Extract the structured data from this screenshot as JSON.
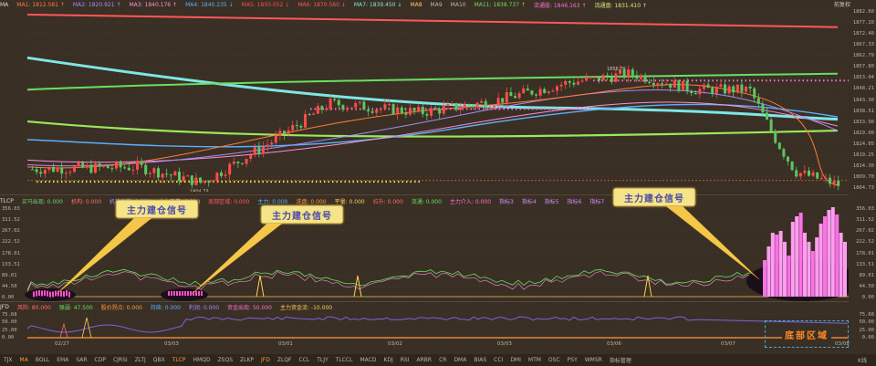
{
  "top_bar": {
    "ma_items": [
      {
        "label": "MA",
        "color": "#e0d8ca"
      },
      {
        "label": "MA1: 1812.581 ↑",
        "color": "#ff7a3c"
      },
      {
        "label": "MA2: 1820.921 ↑",
        "color": "#a48cff"
      },
      {
        "label": "MA3: 1840.176 ↑",
        "color": "#ff8fd6"
      },
      {
        "label": "MA4: 1840.235 ↓",
        "color": "#5ab0ff"
      },
      {
        "label": "MA5: 1850.052 ↓",
        "color": "#ff4c4c"
      },
      {
        "label": "MA6: 1870.560 ↓",
        "color": "#ff5858"
      },
      {
        "label": "MA7: 1839.450 ↓",
        "color": "#7ee6e6"
      },
      {
        "label": "MA8",
        "color": "#ffce5a"
      },
      {
        "label": "MA9",
        "color": "#c8b6a0"
      },
      {
        "label": "MA10",
        "color": "#c8b6a0"
      },
      {
        "label": "MA11: 1838.737 ↑",
        "color": "#66e060"
      },
      {
        "label": "流通股: 1846.163 ↑",
        "color": "#ff6fd1"
      },
      {
        "label": "流通盘: 1831.410 ↑",
        "color": "#d6f074"
      }
    ],
    "right_label": "前复权"
  },
  "price_axis": [
    "1882.60",
    "1877.20",
    "1872.40",
    "1867.33",
    "1862.79",
    "1857.80",
    "1853.04",
    "1848.21",
    "1843.30",
    "1838.51",
    "1833.90",
    "1829.00",
    "1824.05",
    "1819.25",
    "1814.30",
    "1809.70",
    "1804.73"
  ],
  "price_annotations": {
    "high": "1856.70",
    "low": "1804.73"
  },
  "tlcp_bar": {
    "items": [
      {
        "label": "TLCP",
        "color": "#e0d8ca"
      },
      {
        "label": "买马出现: 0.000",
        "color": "#6fd46b"
      },
      {
        "label": "机构: 0.000",
        "color": "#ff6b6b"
      },
      {
        "label": "机构出货: 0.000",
        "color": "#a48cff"
      },
      {
        "label": "主力吸筹: 0.000",
        "color": "#ff8fd6"
      },
      {
        "label": "底部区域: 0.000",
        "color": "#ff5a5a"
      },
      {
        "label": "主力: 0.000",
        "color": "#5ab0ff"
      },
      {
        "label": "洗盘: 0.000",
        "color": "#ff9b3f"
      },
      {
        "label": "平量: 0.000",
        "color": "#ffce5a"
      },
      {
        "label": "拉升: 0.000",
        "color": "#ff6b6b"
      },
      {
        "label": "流通: 0.000",
        "color": "#66e060"
      },
      {
        "label": "主力介入: 0.000",
        "color": "#ff6fd1"
      },
      {
        "label": "指标3",
        "color": "#d08cff"
      },
      {
        "label": "指标4",
        "color": "#d08cff"
      },
      {
        "label": "指标5",
        "color": "#d08cff"
      },
      {
        "label": "指标6",
        "color": "#d08cff"
      },
      {
        "label": "指标7",
        "color": "#d08cff"
      }
    ],
    "axis": [
      "356.03",
      "311.52",
      "267.02",
      "222.52",
      "178.01",
      "133.51",
      "89.01",
      "44.50",
      "0.00"
    ],
    "right_axis": [
      "356.03",
      "311.52",
      "267.02",
      "222.52",
      "178.01",
      "133.51",
      "89.01",
      "44.50",
      "0.00"
    ]
  },
  "jfd_bar": {
    "items": [
      {
        "label": "JFD",
        "color": "#e0d8ca"
      },
      {
        "label": "风险: 80.000",
        "color": "#ff6b6b"
      },
      {
        "label": "强弱: 47.500",
        "color": "#66e060"
      },
      {
        "label": "股价拐点: 0.000",
        "color": "#ff9b3f"
      },
      {
        "label": "持续: 0.000",
        "color": "#5ab0ff"
      },
      {
        "label": "利润: 0.000",
        "color": "#a48cff"
      },
      {
        "label": "资金出现: 50.000",
        "color": "#ff6fd1"
      },
      {
        "label": "主力资金流: -10.000",
        "color": "#ffce5a"
      }
    ],
    "axis": [
      "75.68",
      "50.00",
      "25.00",
      "0.00"
    ]
  },
  "x_axis": [
    "02/27",
    "03/03",
    "03/01",
    "03/02",
    "03/03",
    "03/06",
    "03/07",
    "03/08"
  ],
  "callouts": [
    {
      "text": "主力建仓信号"
    },
    {
      "text": "主力建仓信号"
    },
    {
      "text": "主力建仓信号"
    }
  ],
  "bottom_zone_label": "底部区域",
  "tabs": [
    "TJX",
    "MA",
    "BOLL",
    "EMA",
    "SAR",
    "CDP",
    "CJRSI",
    "ZLTJ",
    "QBX",
    "TLCP",
    "HMQD",
    "ZSQS",
    "ZLKP",
    "JFD",
    "ZLQF",
    "CCL",
    "TLJY",
    "TLCCL",
    "MACD",
    "KDJ",
    "RSI",
    "ARBR",
    "CR",
    "DMA",
    "BIAS",
    "CCI",
    "DMI",
    "MTM",
    "OSC",
    "PSY",
    "WMSR",
    "指标管理"
  ],
  "active_tabs": [
    "MA",
    "TLCP",
    "JFD"
  ],
  "corner_label": "K线"
}
